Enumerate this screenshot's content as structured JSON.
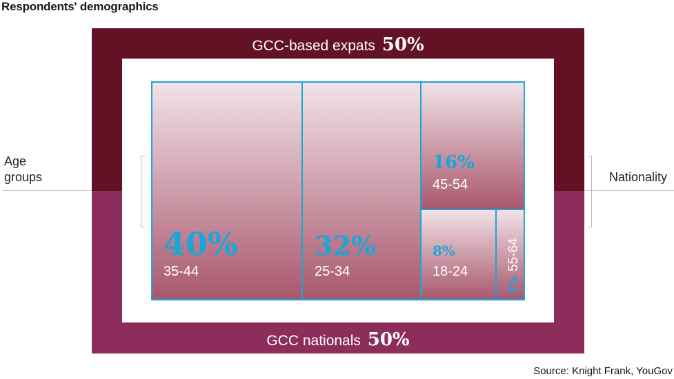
{
  "title": "Respondents' demographics",
  "source": "Source: Knight Frank, YouGov",
  "side_labels": {
    "left": [
      "Age",
      "groups"
    ],
    "right": "Nationality"
  },
  "chart_data": [
    {
      "type": "bar",
      "title": "Nationality",
      "categories": [
        "GCC-based expats",
        "GCC nationals"
      ],
      "values": [
        50,
        50
      ],
      "value_labels": [
        "50%",
        "50%"
      ],
      "colors": [
        "#631124",
        "#8c2d5c"
      ]
    },
    {
      "type": "treemap",
      "title": "Age groups",
      "categories": [
        "35-44",
        "25-34",
        "45-54",
        "18-24",
        "55-64"
      ],
      "values": [
        40,
        32,
        16,
        8,
        3
      ],
      "value_labels": [
        "40%",
        "32%",
        "16%",
        "8%",
        "3%"
      ],
      "fill_gradient": [
        "#f2e3e7",
        "#a8576e"
      ],
      "border_color": "#1aa6d8",
      "label_color": "#1aa6d8"
    }
  ]
}
